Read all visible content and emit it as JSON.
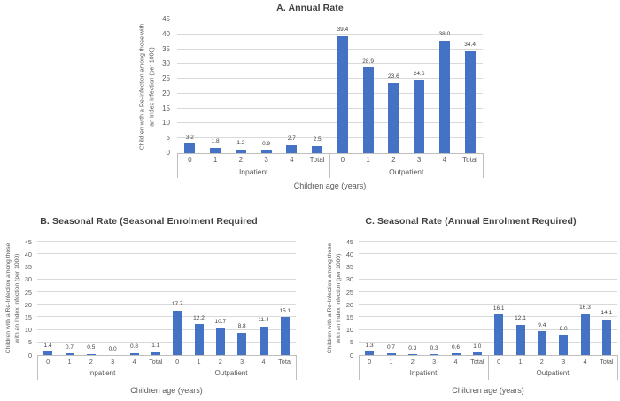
{
  "colors": {
    "bar": "#4472C4",
    "grid": "#D9D9D9",
    "axis": "#BFBFBF",
    "text": "#595959",
    "title": "#404040",
    "value": "#404040",
    "background": "#FFFFFF"
  },
  "chart_data": [
    {
      "type": "bar",
      "title": "A. Annual Rate",
      "xlabel": "Children age (years)",
      "ylabel": "Children with a Re-Infection among those with an Index Infection (per 1000)",
      "ylabel_lines": [
        "Children with a Re-Infection among those with",
        "an Index Infection (per 1000)"
      ],
      "ylim": [
        0,
        45
      ],
      "ytick_step": 5,
      "grid": true,
      "legend": "none",
      "bar_color": "#4472C4",
      "groups": [
        {
          "label": "Inpatient",
          "categories": [
            "0",
            "1",
            "2",
            "3",
            "4",
            "Total"
          ],
          "values": [
            3.2,
            1.8,
            1.2,
            0.9,
            2.7,
            2.5
          ],
          "labels": [
            "3.2",
            "1.8",
            "1.2",
            "0.9",
            "2.7",
            "2.5"
          ]
        },
        {
          "label": "Outpatient",
          "categories": [
            "0",
            "1",
            "2",
            "3",
            "4",
            "Total"
          ],
          "values": [
            39.4,
            28.9,
            23.6,
            24.6,
            38.0,
            34.4
          ],
          "labels": [
            "39.4",
            "28.9",
            "23.6",
            "24.6",
            "38.0",
            "34.4"
          ]
        }
      ]
    },
    {
      "type": "bar",
      "title": "B. Seasonal Rate (Seasonal Enrolment Required",
      "xlabel": "Children age (years)",
      "ylabel": "Children with a Re-Infection among those with an Index Infection (per 1000)",
      "ylabel_lines": [
        "Children with a Re-Infection among those",
        "with an Index Infection (per 1000)"
      ],
      "ylim": [
        0,
        45
      ],
      "ytick_step": 5,
      "grid": true,
      "legend": "none",
      "bar_color": "#4472C4",
      "groups": [
        {
          "label": "Inpatient",
          "categories": [
            "0",
            "1",
            "2",
            "3",
            "4",
            "Total"
          ],
          "values": [
            1.4,
            0.7,
            0.5,
            0.0,
            0.8,
            1.1
          ],
          "labels": [
            "1.4",
            "0.7",
            "0.5",
            "0.0",
            "0.8",
            "1.1"
          ]
        },
        {
          "label": "Outpatient",
          "categories": [
            "0",
            "1",
            "2",
            "3",
            "4",
            "Total"
          ],
          "values": [
            17.7,
            12.2,
            10.7,
            8.8,
            11.4,
            15.1
          ],
          "labels": [
            "17.7",
            "12.2",
            "10.7",
            "8.8",
            "11.4",
            "15.1"
          ]
        }
      ]
    },
    {
      "type": "bar",
      "title": "C. Seasonal Rate (Annual Enrolment Required)",
      "xlabel": "Children age (years)",
      "ylabel": "Children with a Re-Infection among those with an Index Infection (per 1000)",
      "ylabel_lines": [
        "Children with a Re-Infection among those",
        "with an Index Infection (per 1000)"
      ],
      "ylim": [
        0,
        45
      ],
      "ytick_step": 5,
      "grid": true,
      "legend": "none",
      "bar_color": "#4472C4",
      "groups": [
        {
          "label": "Inpatient",
          "categories": [
            "0",
            "1",
            "2",
            "3",
            "4",
            "Total"
          ],
          "values": [
            1.3,
            0.7,
            0.3,
            0.3,
            0.6,
            1.0
          ],
          "labels": [
            "1.3",
            "0.7",
            "0.3",
            "0.3",
            "0.6",
            "1.0"
          ]
        },
        {
          "label": "Outpatient",
          "categories": [
            "0",
            "1",
            "2",
            "3",
            "4",
            "Total"
          ],
          "values": [
            16.1,
            12.1,
            9.4,
            8.0,
            16.3,
            14.1
          ],
          "labels": [
            "16.1",
            "12.1",
            "9.4",
            "8.0",
            "16.3",
            "14.1"
          ]
        }
      ]
    }
  ]
}
